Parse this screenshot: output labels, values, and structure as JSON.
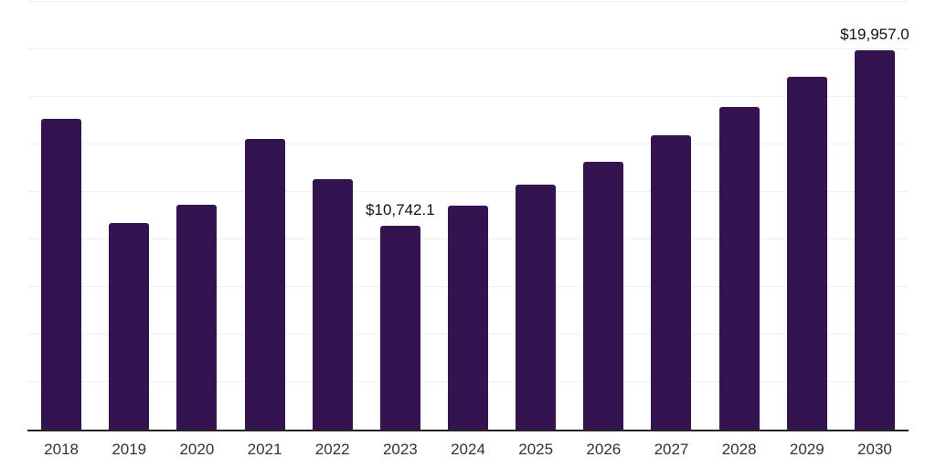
{
  "chart": {
    "bar_color": "#331450",
    "gridline_color": "#f1f1f1",
    "axis_line_color": "#222222",
    "x_label_color": "#333333",
    "point_label_color": "#111111",
    "background_color": "#ffffff"
  },
  "chart_data": {
    "type": "bar",
    "categories": [
      "2018",
      "2019",
      "2020",
      "2021",
      "2022",
      "2023",
      "2024",
      "2025",
      "2026",
      "2027",
      "2028",
      "2029",
      "2030"
    ],
    "values": [
      16350,
      10870,
      11830,
      15300,
      13170,
      10742.1,
      11760,
      12890,
      14110,
      15490,
      16970,
      18570,
      19957.0
    ],
    "point_labels": {
      "2023": "$10,742.1",
      "2030": "$19,957.0"
    },
    "title": "",
    "xlabel": "",
    "ylabel": "",
    "ylim": [
      0,
      22500
    ],
    "gridline_step": 2500,
    "grid": true,
    "legend": false,
    "y_tick_labels_visible": false
  }
}
